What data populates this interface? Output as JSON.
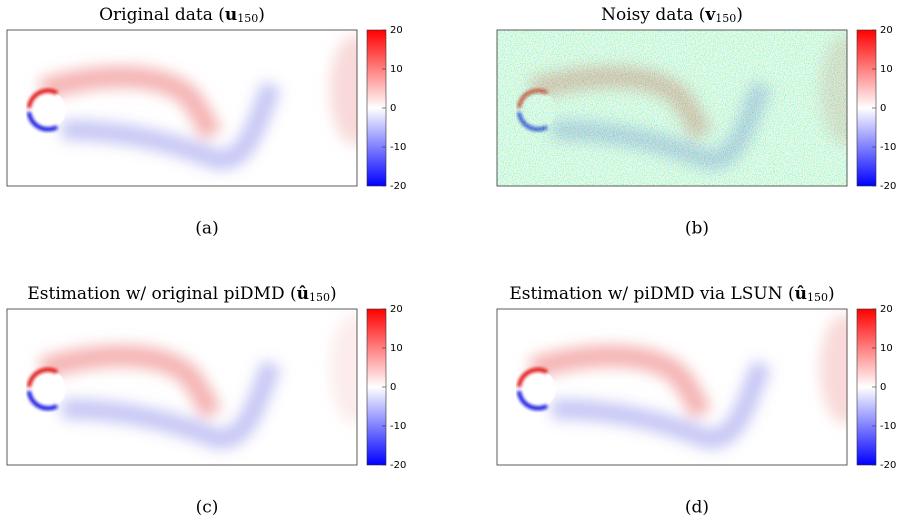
{
  "chart_data": [
    {
      "type": "heatmap",
      "title": [
        "Original data (",
        "u",
        "150",
        ")"
      ],
      "caption": "(a)",
      "clim": [
        -20,
        20
      ],
      "cticks": [
        20,
        10,
        0,
        -10,
        -20
      ],
      "noisy": false
    },
    {
      "type": "heatmap",
      "title": [
        "Noisy data (",
        "v",
        "150",
        ")"
      ],
      "caption": "(b)",
      "clim": [
        -20,
        20
      ],
      "cticks": [
        20,
        10,
        0,
        -10,
        -20
      ],
      "noisy": true
    },
    {
      "type": "heatmap",
      "title": [
        "Estimation w/ original piDMD (",
        "û",
        "150",
        ")"
      ],
      "caption": "(c)",
      "clim": [
        -20,
        20
      ],
      "cticks": [
        20,
        10,
        0,
        -10,
        -20
      ],
      "noisy": false
    },
    {
      "type": "heatmap",
      "title": [
        "Estimation w/ piDMD via LSUN (",
        "û",
        "150",
        ")"
      ],
      "caption": "(d)",
      "clim": [
        -20,
        20
      ],
      "cticks": [
        20,
        10,
        0,
        -10,
        -20
      ],
      "noisy": false
    }
  ]
}
